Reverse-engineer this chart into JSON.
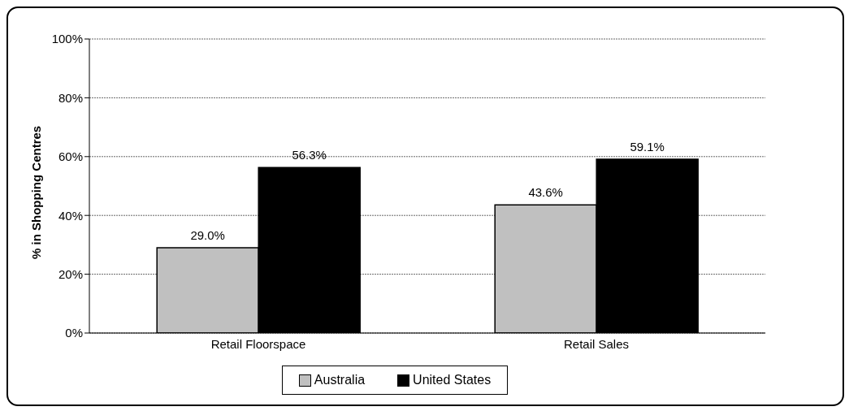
{
  "chart_data": {
    "type": "bar",
    "ylabel": "% in Shopping Centres",
    "categories": [
      "Retail Floorspace",
      "Retail Sales"
    ],
    "series": [
      {
        "name": "Australia",
        "color": "#c0c0c0",
        "values": [
          29.0,
          43.6
        ],
        "value_labels": [
          "29.0%",
          "43.6%"
        ]
      },
      {
        "name": "United States",
        "color": "#000000",
        "values": [
          56.3,
          59.1
        ],
        "value_labels": [
          "56.3%",
          "59.1%"
        ]
      }
    ],
    "ylim": [
      0,
      100
    ],
    "yticks": [
      {
        "value": 0,
        "label": "0%"
      },
      {
        "value": 20,
        "label": "20%"
      },
      {
        "value": 40,
        "label": "40%"
      },
      {
        "value": 60,
        "label": "60%"
      },
      {
        "value": 80,
        "label": "80%"
      },
      {
        "value": 100,
        "label": "100%"
      }
    ],
    "grid": "y",
    "legend": "bottom"
  }
}
